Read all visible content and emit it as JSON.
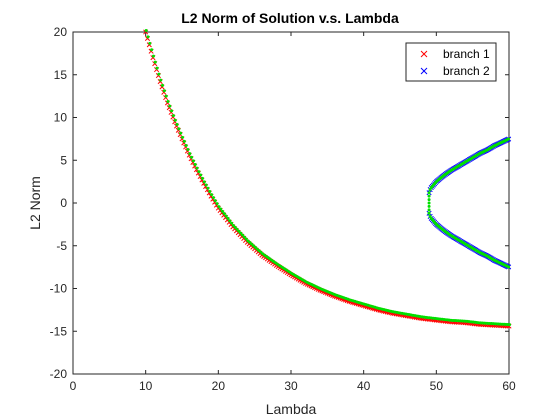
{
  "chart_data": {
    "type": "scatter",
    "title": "L2 Norm of Solution v.s. Lambda",
    "xlabel": "Lambda",
    "ylabel": "L2 Norm",
    "xlim": [
      0,
      60
    ],
    "ylim": [
      -20,
      20
    ],
    "xticks": [
      0,
      10,
      20,
      30,
      40,
      50,
      60
    ],
    "yticks": [
      -20,
      -15,
      -10,
      -5,
      0,
      5,
      10,
      15,
      20
    ],
    "grid": false,
    "legend_position": "top-right",
    "series": [
      {
        "name": "branch 1",
        "marker": "x",
        "color": "#ff0000",
        "x": [
          10,
          11,
          12,
          13,
          14,
          15,
          16,
          17,
          18,
          19,
          20,
          22,
          24,
          26,
          28,
          30,
          32,
          34,
          36,
          38,
          40,
          42,
          44,
          46,
          48,
          50,
          52,
          54,
          56,
          58,
          60
        ],
        "y": [
          20,
          17,
          14.2,
          11.7,
          9.5,
          7.5,
          5.6,
          3.9,
          2.3,
          0.8,
          -0.6,
          -2.8,
          -4.6,
          -6.1,
          -7.3,
          -8.4,
          -9.4,
          -10.2,
          -10.9,
          -11.5,
          -12.0,
          -12.5,
          -12.9,
          -13.2,
          -13.5,
          -13.7,
          -13.9,
          -14.0,
          -14.2,
          -14.3,
          -14.4
        ]
      },
      {
        "name": "branch 2",
        "marker": "x",
        "color": "#0000ff",
        "x": [
          49,
          49.2,
          49.5,
          50,
          51,
          52,
          53,
          54,
          55,
          56,
          57,
          58,
          59,
          60
        ],
        "y_upper": [
          1.2,
          1.7,
          2.0,
          2.5,
          3.2,
          3.8,
          4.3,
          4.8,
          5.3,
          5.8,
          6.2,
          6.7,
          7.1,
          7.5
        ],
        "y_lower": [
          -1.2,
          -1.7,
          -2.0,
          -2.5,
          -3.2,
          -3.8,
          -4.3,
          -4.8,
          -5.3,
          -5.8,
          -6.2,
          -6.7,
          -7.1,
          -7.5
        ]
      }
    ],
    "overlay": {
      "color": "#00e000",
      "marker": "."
    }
  }
}
